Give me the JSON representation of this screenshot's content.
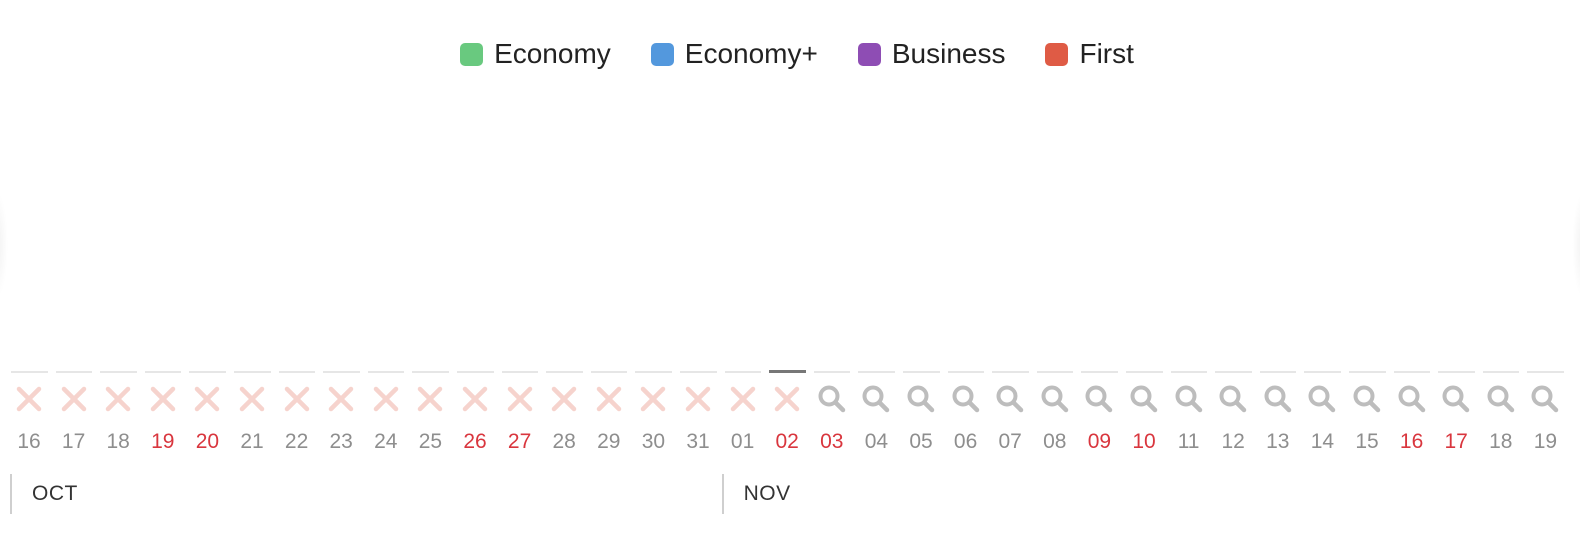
{
  "legend": [
    {
      "label": "Economy",
      "color": "#69c97f"
    },
    {
      "label": "Economy+",
      "color": "#5398dd"
    },
    {
      "label": "Business",
      "color": "#8e4db4"
    },
    {
      "label": "First",
      "color": "#df5b45"
    }
  ],
  "icons": {
    "unavailable": {
      "name": "x-icon",
      "color": "#f6d3cd"
    },
    "searchable": {
      "name": "search-icon",
      "color": "#bdbdbd"
    }
  },
  "accent_colors": {
    "weekend": "#d9363e",
    "day_number": "#8e8e8e"
  },
  "selected_day_index": 17,
  "days": [
    {
      "day": "16",
      "weekend": false,
      "status": "unavailable"
    },
    {
      "day": "17",
      "weekend": false,
      "status": "unavailable"
    },
    {
      "day": "18",
      "weekend": false,
      "status": "unavailable"
    },
    {
      "day": "19",
      "weekend": true,
      "status": "unavailable"
    },
    {
      "day": "20",
      "weekend": true,
      "status": "unavailable"
    },
    {
      "day": "21",
      "weekend": false,
      "status": "unavailable"
    },
    {
      "day": "22",
      "weekend": false,
      "status": "unavailable"
    },
    {
      "day": "23",
      "weekend": false,
      "status": "unavailable"
    },
    {
      "day": "24",
      "weekend": false,
      "status": "unavailable"
    },
    {
      "day": "25",
      "weekend": false,
      "status": "unavailable"
    },
    {
      "day": "26",
      "weekend": true,
      "status": "unavailable"
    },
    {
      "day": "27",
      "weekend": true,
      "status": "unavailable"
    },
    {
      "day": "28",
      "weekend": false,
      "status": "unavailable"
    },
    {
      "day": "29",
      "weekend": false,
      "status": "unavailable"
    },
    {
      "day": "30",
      "weekend": false,
      "status": "unavailable"
    },
    {
      "day": "31",
      "weekend": false,
      "status": "unavailable"
    },
    {
      "day": "01",
      "weekend": false,
      "status": "unavailable"
    },
    {
      "day": "02",
      "weekend": true,
      "status": "unavailable"
    },
    {
      "day": "03",
      "weekend": true,
      "status": "searchable"
    },
    {
      "day": "04",
      "weekend": false,
      "status": "searchable"
    },
    {
      "day": "05",
      "weekend": false,
      "status": "searchable"
    },
    {
      "day": "06",
      "weekend": false,
      "status": "searchable"
    },
    {
      "day": "07",
      "weekend": false,
      "status": "searchable"
    },
    {
      "day": "08",
      "weekend": false,
      "status": "searchable"
    },
    {
      "day": "09",
      "weekend": true,
      "status": "searchable"
    },
    {
      "day": "10",
      "weekend": true,
      "status": "searchable"
    },
    {
      "day": "11",
      "weekend": false,
      "status": "searchable"
    },
    {
      "day": "12",
      "weekend": false,
      "status": "searchable"
    },
    {
      "day": "13",
      "weekend": false,
      "status": "searchable"
    },
    {
      "day": "14",
      "weekend": false,
      "status": "searchable"
    },
    {
      "day": "15",
      "weekend": false,
      "status": "searchable"
    },
    {
      "day": "16",
      "weekend": true,
      "status": "searchable"
    },
    {
      "day": "17",
      "weekend": true,
      "status": "searchable"
    },
    {
      "day": "18",
      "weekend": false,
      "status": "searchable"
    },
    {
      "day": "19",
      "weekend": false,
      "status": "searchable"
    }
  ],
  "months": [
    {
      "label": "OCT",
      "start_index": 0
    },
    {
      "label": "NOV",
      "start_index": 16
    }
  ]
}
